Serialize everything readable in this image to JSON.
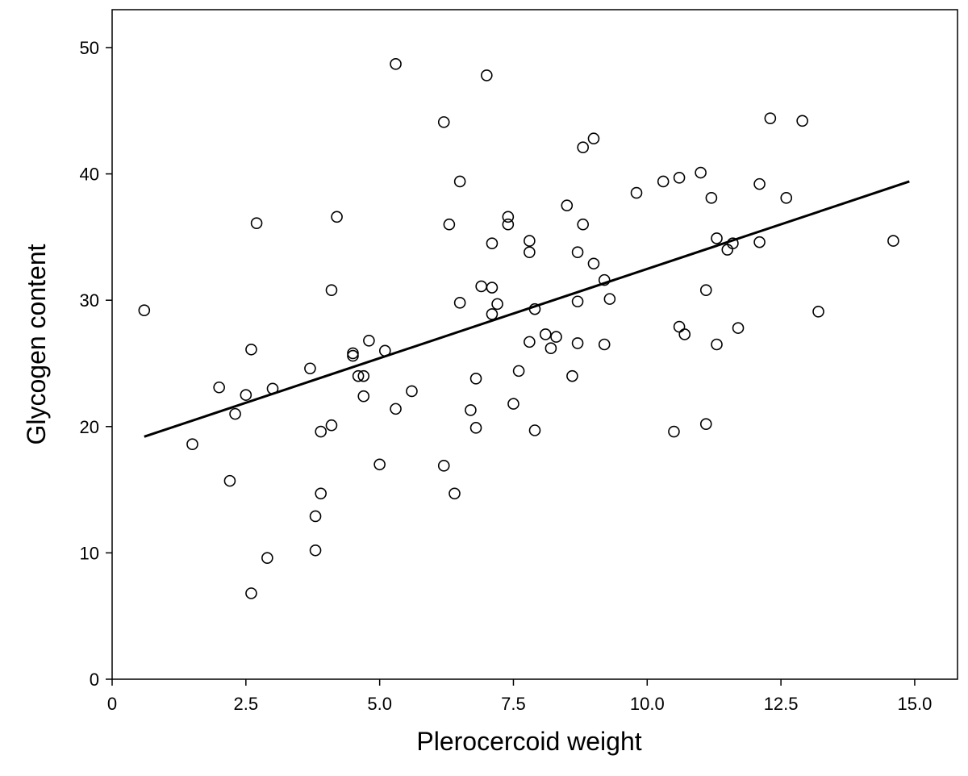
{
  "chart_data": {
    "type": "scatter",
    "title": "",
    "xlabel": "Plerocercoid weight",
    "ylabel": "Glycogen content",
    "xlim": [
      0,
      15.8
    ],
    "ylim": [
      0,
      53
    ],
    "x_ticks": [
      "0",
      "2.5",
      "5.0",
      "7.5",
      "10.0",
      "12.5",
      "15.0"
    ],
    "y_ticks": [
      "0",
      "10",
      "20",
      "30",
      "40",
      "50"
    ],
    "grid": false,
    "legend": "none",
    "points": [
      [
        0.6,
        29.2
      ],
      [
        1.5,
        18.6
      ],
      [
        2.0,
        23.1
      ],
      [
        2.2,
        15.7
      ],
      [
        2.3,
        21.0
      ],
      [
        2.5,
        22.5
      ],
      [
        2.6,
        26.1
      ],
      [
        2.6,
        6.8
      ],
      [
        2.7,
        36.1
      ],
      [
        2.9,
        9.6
      ],
      [
        3.0,
        23.0
      ],
      [
        3.7,
        24.6
      ],
      [
        3.8,
        12.9
      ],
      [
        3.8,
        10.2
      ],
      [
        3.9,
        19.6
      ],
      [
        3.9,
        14.7
      ],
      [
        4.1,
        30.8
      ],
      [
        4.1,
        20.1
      ],
      [
        4.2,
        36.6
      ],
      [
        4.5,
        25.8
      ],
      [
        4.5,
        25.6
      ],
      [
        4.6,
        24.0
      ],
      [
        4.7,
        24.0
      ],
      [
        4.7,
        22.4
      ],
      [
        4.8,
        26.8
      ],
      [
        5.0,
        17.0
      ],
      [
        5.1,
        26.0
      ],
      [
        5.3,
        48.7
      ],
      [
        5.3,
        21.4
      ],
      [
        5.6,
        22.8
      ],
      [
        6.2,
        44.1
      ],
      [
        6.2,
        16.9
      ],
      [
        6.3,
        36.0
      ],
      [
        6.4,
        14.7
      ],
      [
        6.5,
        39.4
      ],
      [
        6.5,
        29.8
      ],
      [
        6.7,
        21.3
      ],
      [
        6.8,
        23.8
      ],
      [
        6.8,
        19.9
      ],
      [
        6.9,
        31.1
      ],
      [
        7.0,
        47.8
      ],
      [
        7.1,
        34.5
      ],
      [
        7.1,
        31.0
      ],
      [
        7.1,
        28.9
      ],
      [
        7.2,
        29.7
      ],
      [
        7.4,
        36.6
      ],
      [
        7.4,
        36.0
      ],
      [
        7.5,
        21.8
      ],
      [
        7.6,
        24.4
      ],
      [
        7.8,
        34.7
      ],
      [
        7.8,
        33.8
      ],
      [
        7.8,
        26.7
      ],
      [
        7.9,
        29.3
      ],
      [
        7.9,
        19.7
      ],
      [
        8.1,
        27.3
      ],
      [
        8.2,
        26.2
      ],
      [
        8.3,
        27.1
      ],
      [
        8.5,
        37.5
      ],
      [
        8.6,
        24.0
      ],
      [
        8.7,
        33.8
      ],
      [
        8.7,
        29.9
      ],
      [
        8.7,
        26.6
      ],
      [
        8.8,
        42.1
      ],
      [
        8.8,
        36.0
      ],
      [
        9.0,
        42.8
      ],
      [
        9.0,
        32.9
      ],
      [
        9.2,
        31.6
      ],
      [
        9.2,
        26.5
      ],
      [
        9.3,
        30.1
      ],
      [
        9.8,
        38.5
      ],
      [
        10.3,
        39.4
      ],
      [
        10.5,
        19.6
      ],
      [
        10.6,
        39.7
      ],
      [
        10.6,
        27.9
      ],
      [
        10.7,
        27.3
      ],
      [
        11.0,
        40.1
      ],
      [
        11.1,
        30.8
      ],
      [
        11.1,
        20.2
      ],
      [
        11.2,
        38.1
      ],
      [
        11.3,
        34.9
      ],
      [
        11.3,
        26.5
      ],
      [
        11.5,
        34.0
      ],
      [
        11.6,
        34.5
      ],
      [
        11.7,
        27.8
      ],
      [
        12.1,
        39.2
      ],
      [
        12.1,
        34.6
      ],
      [
        12.3,
        44.4
      ],
      [
        12.6,
        38.1
      ],
      [
        12.9,
        44.2
      ],
      [
        13.2,
        29.1
      ],
      [
        14.6,
        34.7
      ]
    ],
    "fit_line": {
      "x": [
        0.6,
        14.9
      ],
      "y": [
        19.2,
        39.4
      ]
    }
  }
}
